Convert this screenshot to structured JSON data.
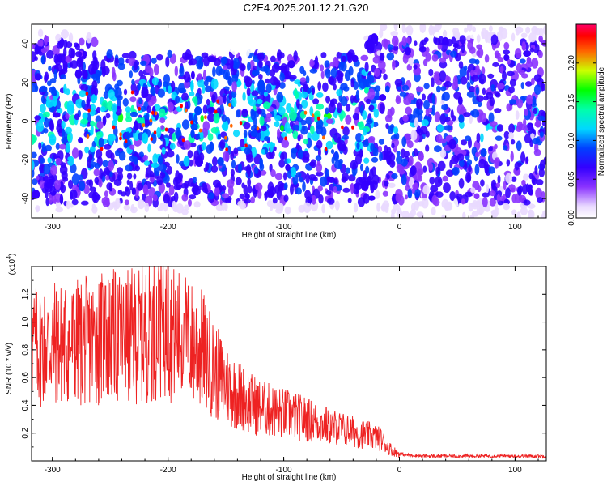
{
  "title": "C2E4.2025.201.12.21.G20",
  "chart_data": [
    {
      "type": "heatmap",
      "xlabel": "Height of straight line (km)",
      "ylabel": "Frequency (Hz)",
      "xlim": [
        -318,
        127
      ],
      "ylim": [
        -50,
        50
      ],
      "xticks": [
        -300,
        -200,
        -100,
        0,
        100
      ],
      "xtick_labels": [
        "-300",
        "-200",
        "-100",
        "0",
        "100"
      ],
      "yticks": [
        -40,
        -20,
        0,
        20,
        40
      ],
      "ytick_labels": [
        "-40",
        "-20",
        "0",
        "20",
        "40"
      ],
      "colorbar": {
        "label": "Normalized spectral amplitude",
        "range": [
          0,
          0.25
        ],
        "ticks": [
          0.0,
          0.05,
          0.1,
          0.15,
          0.2
        ],
        "tick_labels": [
          "0.00",
          "0.05",
          "0.10",
          "0.15",
          "0.20"
        ],
        "colors": [
          "#ffffff",
          "#cc99ff",
          "#6600ff",
          "#0000ff",
          "#00ffff",
          "#00ff00",
          "#ffff00",
          "#ff0000",
          "#ff0066"
        ]
      },
      "grid": false
    },
    {
      "type": "line",
      "xlabel": "Height of straight line (km)",
      "ylabel": "SNR (10 * v/v)",
      "yscale_label_base": "(x10",
      "yscale_label_exp": "4",
      "yscale_label_end": ")",
      "xlim": [
        -318,
        127
      ],
      "ylim": [
        0,
        1.4
      ],
      "xticks": [
        -300,
        -200,
        -100,
        0,
        100
      ],
      "xtick_labels": [
        "-300",
        "-200",
        "-100",
        "0",
        "100"
      ],
      "yticks": [
        0.2,
        0.4,
        0.6,
        0.8,
        1.0,
        1.2
      ],
      "ytick_labels": [
        "0.2",
        "0.4",
        "0.6",
        "0.8",
        "1.0",
        "1.2"
      ],
      "color": "#ee2222",
      "grid": false,
      "series": [
        {
          "x": [
            -318,
            -310,
            -300,
            -290,
            -280,
            -270,
            -260,
            -250,
            -240,
            -230,
            -220,
            -210,
            -205,
            -200,
            -190,
            -180,
            -170,
            -160,
            -150,
            -140,
            -130,
            -120,
            -110,
            -100,
            -90,
            -80,
            -70,
            -60,
            -50,
            -40,
            -30,
            -20,
            -15,
            -10,
            -5,
            0,
            10,
            20,
            40,
            60,
            80,
            100,
            127
          ],
          "values": [
            0.85,
            0.82,
            0.85,
            0.83,
            0.85,
            0.86,
            0.88,
            0.9,
            0.88,
            0.9,
            0.92,
            0.95,
            1.0,
            0.93,
            0.9,
            0.85,
            0.8,
            0.65,
            0.55,
            0.48,
            0.42,
            0.38,
            0.36,
            0.34,
            0.32,
            0.3,
            0.27,
            0.25,
            0.23,
            0.21,
            0.19,
            0.17,
            0.15,
            0.1,
            0.07,
            0.05,
            0.04,
            0.035,
            0.035,
            0.035,
            0.035,
            0.035,
            0.035
          ]
        }
      ],
      "peaks": [
        {
          "x": -254,
          "y": 1.26
        },
        {
          "x": -215,
          "y": 1.22
        },
        {
          "x": -207,
          "y": 1.3
        },
        {
          "x": -200,
          "y": 1.4
        },
        {
          "x": -186,
          "y": 1.06
        }
      ]
    }
  ]
}
